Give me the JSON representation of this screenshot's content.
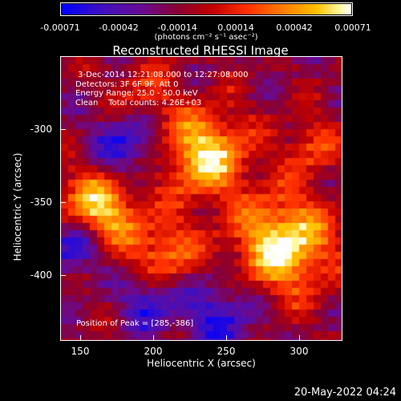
{
  "colorbar": {
    "ticks": [
      "-0.00071",
      "-0.00042",
      "-0.00014",
      "0.00014",
      "0.00042",
      "0.00071"
    ],
    "units": "(photons cm⁻² s⁻¹ asec⁻²)"
  },
  "title": "Reconstructed RHESSI Image",
  "annotations": [
    " 3-Dec-2014 12:21:08.000 to 12:27:08.000",
    "Detectors: 3F 6F 9F, Att 0",
    "Energy Range: 25.0 - 50.0 keV",
    "Clean    Total counts: 4.26E+03"
  ],
  "peak_label": "Position of Peak = [285,-386]",
  "x_axis": {
    "label": "Heliocentric X (arcsec)",
    "ticks": [
      "150",
      "200",
      "250",
      "300"
    ]
  },
  "y_axis": {
    "label": "Heliocentric Y (arcsec)",
    "ticks": [
      "-300",
      "-350",
      "-400"
    ]
  },
  "timestamp": "20-May-2022 04:24",
  "colors": {
    "background": "#000000",
    "foreground": "#ffffff"
  }
}
